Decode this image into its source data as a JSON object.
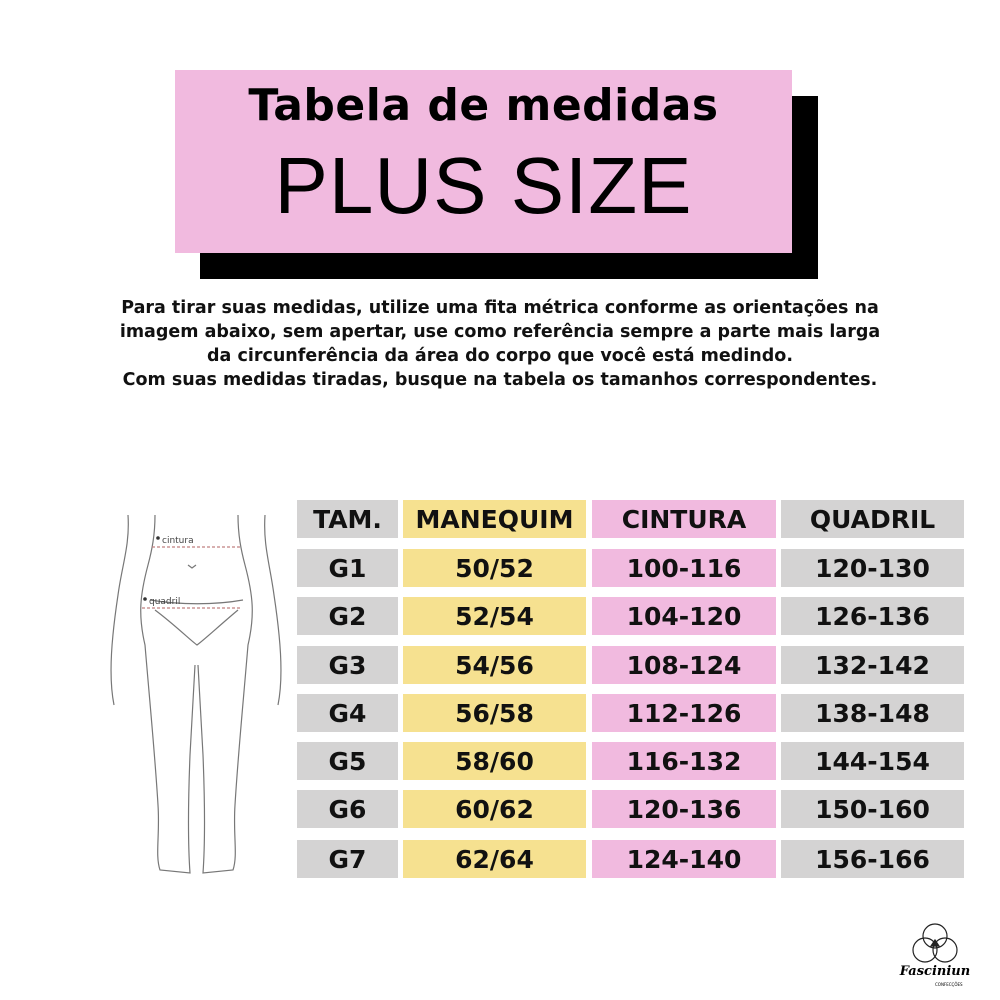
{
  "header": {
    "title": "Tabela de medidas",
    "subtitle": "PLUS SIZE"
  },
  "intro": {
    "lines": [
      "Para tirar suas medidas, utilize uma fita métrica conforme as orientações na",
      "imagem abaixo, sem apertar, use como referência sempre a parte mais larga",
      "da circunferência da área do corpo que você está medindo.",
      "Com suas medidas tiradas, busque na tabela os tamanhos correspondentes."
    ]
  },
  "figure": {
    "waist_label": "cintura",
    "hip_label": "quadril"
  },
  "table": {
    "headers": [
      "TAM.",
      "MANEQUIM",
      "CINTURA",
      "QUADRIL"
    ],
    "rows": [
      [
        "G1",
        "50/52",
        "100-116",
        "120-130"
      ],
      [
        "G2",
        "52/54",
        "104-120",
        "126-136"
      ],
      [
        "G3",
        "54/56",
        "108-124",
        "132-142"
      ],
      [
        "G4",
        "56/58",
        "112-126",
        "138-148"
      ],
      [
        "G5",
        "58/60",
        "116-132",
        "144-154"
      ],
      [
        "G6",
        "60/62",
        "120-136",
        "150-160"
      ],
      [
        "G7",
        "62/64",
        "124-140",
        "156-166"
      ]
    ]
  },
  "colors": {
    "pink": "#f1badf",
    "yellow": "#f6e190",
    "gray": "#d4d3d3",
    "shadow": "#000000"
  },
  "logo": {
    "name": "Fasciniun",
    "sub": "CONFECÇÕES"
  }
}
